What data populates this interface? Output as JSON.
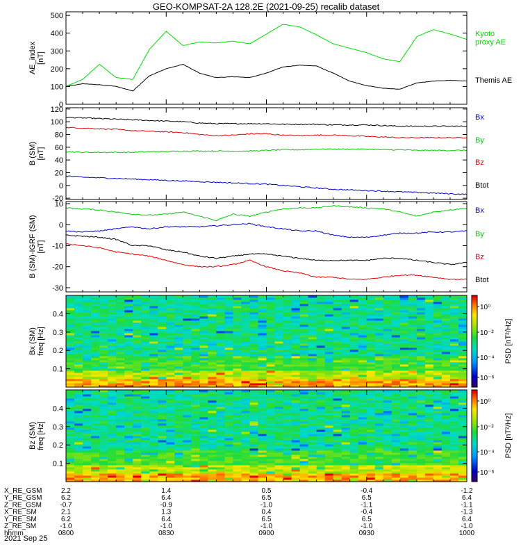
{
  "title": "GEO-KOMPSAT-2A 128.2E (2021-09-25) recalib dataset",
  "chart_data": [
    {
      "type": "line",
      "ylabel": "AE_index\n[nT]",
      "ylim": [
        0,
        520
      ],
      "yticks": [
        0,
        100,
        200,
        300,
        400,
        500
      ],
      "x": [
        "0800",
        "0805",
        "0810",
        "0815",
        "0820",
        "0825",
        "0830",
        "0835",
        "0840",
        "0845",
        "0850",
        "0855",
        "0900",
        "0905",
        "0910",
        "0915",
        "0920",
        "0925",
        "0930",
        "0935",
        "0940",
        "0945",
        "0950",
        "0955",
        "1000"
      ],
      "series": [
        {
          "name": "Kyoto\nproxy AE",
          "color": "#00dd00",
          "values": [
            100,
            140,
            225,
            150,
            140,
            310,
            410,
            330,
            350,
            345,
            355,
            340,
            395,
            450,
            435,
            390,
            340,
            315,
            290,
            255,
            240,
            380,
            420,
            395,
            365
          ]
        },
        {
          "name": "Themis AE",
          "color": "#000000",
          "values": [
            100,
            115,
            110,
            100,
            75,
            160,
            200,
            225,
            175,
            150,
            155,
            150,
            175,
            210,
            220,
            215,
            175,
            130,
            105,
            90,
            85,
            120,
            130,
            135,
            130
          ]
        }
      ],
      "legend_placement": "right"
    },
    {
      "type": "line",
      "ylabel": "B (SM)\n[nT]",
      "ylim": [
        -22,
        122
      ],
      "yticks": [
        -20,
        0,
        20,
        40,
        60,
        80,
        100,
        120
      ],
      "x": [
        "0800",
        "0805",
        "0810",
        "0815",
        "0820",
        "0825",
        "0830",
        "0835",
        "0840",
        "0845",
        "0850",
        "0855",
        "0900",
        "0905",
        "0910",
        "0915",
        "0920",
        "0925",
        "0930",
        "0935",
        "0940",
        "0945",
        "0950",
        "0955",
        "1000"
      ],
      "series": [
        {
          "name": "Btot",
          "color": "#000000",
          "values": [
            107,
            106,
            105,
            104,
            103,
            102,
            101,
            100,
            98,
            97,
            97,
            97,
            97,
            96,
            96,
            96,
            95,
            95,
            95,
            94,
            93,
            93,
            93,
            93,
            93
          ]
        },
        {
          "name": "Bz",
          "color": "#dd0000",
          "values": [
            91,
            90,
            89,
            88,
            86,
            85,
            84,
            83,
            80,
            78,
            79,
            81,
            81,
            79,
            78,
            79,
            79,
            78,
            77,
            76,
            75,
            75,
            75,
            75,
            75
          ]
        },
        {
          "name": "By",
          "color": "#00cc00",
          "values": [
            53,
            52,
            52,
            52,
            52,
            53,
            53,
            54,
            54,
            54,
            54,
            54,
            55,
            56,
            56,
            57,
            57,
            57,
            57,
            56,
            56,
            55,
            55,
            55,
            55
          ]
        },
        {
          "name": "Bx",
          "color": "#0000cc",
          "values": [
            15,
            13,
            12,
            11,
            10,
            9,
            8,
            7,
            6,
            5,
            4,
            3,
            2,
            0,
            -2,
            -4,
            -6,
            -7,
            -8,
            -9,
            -10,
            -11,
            -12,
            -13,
            -14
          ]
        }
      ],
      "legend_order": [
        "Bx",
        "By",
        "Bz",
        "Btot"
      ],
      "legend_colors": {
        "Bx": "#0000cc",
        "By": "#00cc00",
        "Bz": "#dd0000",
        "Btot": "#000000"
      }
    },
    {
      "type": "line",
      "ylabel": "B (SM)-IGRF (SM)\n[nT]",
      "ylim": [
        -32,
        11
      ],
      "yticks": [
        -30,
        -20,
        -10,
        0,
        10
      ],
      "x": [
        "0800",
        "0805",
        "0810",
        "0815",
        "0820",
        "0825",
        "0830",
        "0835",
        "0840",
        "0845",
        "0850",
        "0855",
        "0900",
        "0905",
        "0910",
        "0915",
        "0920",
        "0925",
        "0930",
        "0935",
        "0940",
        "0945",
        "0950",
        "0955",
        "1000"
      ],
      "series": [
        {
          "name": "By",
          "color": "#00cc00",
          "values": [
            8,
            7.5,
            7,
            6,
            5,
            4.5,
            5,
            6,
            4,
            2,
            5,
            4,
            6,
            7.5,
            8,
            8,
            9,
            8.5,
            8,
            7.5,
            6,
            4,
            6,
            7,
            8
          ]
        },
        {
          "name": "Bx",
          "color": "#0000cc",
          "values": [
            -3,
            -3.5,
            -3,
            -2,
            -1,
            -2,
            -1,
            -1,
            -1,
            -0.5,
            0,
            0.5,
            -1,
            -2,
            -3,
            -3,
            -5,
            -6,
            -6,
            -5,
            -4,
            -4,
            -3.5,
            -3.5,
            -3
          ]
        },
        {
          "name": "Btot",
          "color": "#000000",
          "values": [
            -5,
            -5.5,
            -6,
            -7,
            -10,
            -10,
            -12,
            -13,
            -15,
            -16,
            -15,
            -14,
            -14,
            -15,
            -16,
            -17,
            -17,
            -17,
            -17,
            -16,
            -16,
            -17,
            -18,
            -19,
            -18
          ]
        },
        {
          "name": "Bz",
          "color": "#dd0000",
          "values": [
            -9,
            -10,
            -11,
            -13,
            -14,
            -15,
            -17,
            -19,
            -20,
            -20,
            -19,
            -17,
            -20,
            -22,
            -23,
            -25,
            -25,
            -26,
            -26,
            -25,
            -24,
            -24,
            -25,
            -26,
            -26
          ]
        }
      ],
      "legend_order": [
        "Bx",
        "By",
        "Bz",
        "Btot"
      ],
      "legend_colors": {
        "Bx": "#0000cc",
        "By": "#00cc00",
        "Bz": "#dd0000",
        "Btot": "#000000"
      }
    },
    {
      "type": "heatmap",
      "ylabel": "Bx (SM)\nfreq [Hz]",
      "ylim": [
        0,
        0.5
      ],
      "yticks": [
        "0.1",
        "0.2",
        "0.3",
        "0.4"
      ],
      "colorbar": {
        "label": "PSD [nT²/Hz]",
        "ticks": [
          "10⁰",
          "10⁻²",
          "10⁻⁴",
          "10⁻⁶"
        ]
      }
    },
    {
      "type": "heatmap",
      "ylabel": "Bz (SM)\nfreq [Hz]",
      "ylim": [
        0,
        0.5
      ],
      "yticks": [
        "0.1",
        "0.2",
        "0.3",
        "0.4"
      ],
      "colorbar": {
        "label": "PSD [nT²/Hz]",
        "ticks": [
          "10⁰",
          "10⁻²",
          "10⁻⁴",
          "10⁻⁶"
        ]
      }
    }
  ],
  "orbit_table": {
    "row_labels": [
      "X_RE_GSM",
      "Y_RE_GSM",
      "Z_RE_GSM",
      "X_RE_SM",
      "Y_RE_SM",
      "Z_RE_SM",
      "hhmm"
    ],
    "columns": [
      [
        "2.2",
        "6.2",
        "-0.7",
        "2.1",
        "6.2",
        "-1.0",
        "0800"
      ],
      [
        "1.4",
        "6.4",
        "-0.9",
        "1.3",
        "6.4",
        "-1.0",
        "0830"
      ],
      [
        "0.5",
        "6.5",
        "-1.0",
        "0.4",
        "6.5",
        "-1.0",
        "0900"
      ],
      [
        "-0.4",
        "6.5",
        "-1.1",
        "-0.4",
        "6.5",
        "-1.0",
        "0930"
      ],
      [
        "-1.2",
        "6.4",
        "-1.1",
        "-1.3",
        "6.4",
        "-1.0",
        "1000"
      ]
    ],
    "date": "2021 Sep 25"
  }
}
